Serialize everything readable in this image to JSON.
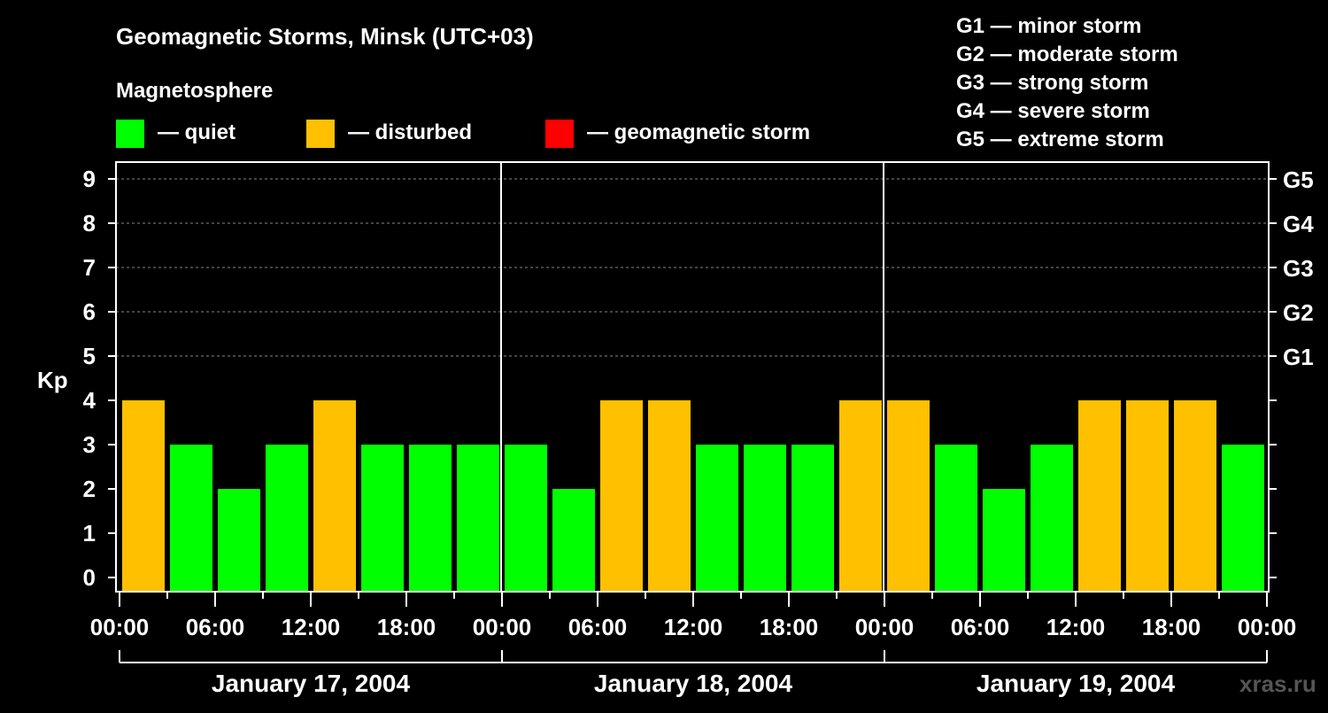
{
  "chart_data": {
    "type": "bar",
    "title": "Geomagnetic Storms, Minsk (UTC+03)",
    "subtitle": "Magnetosphere",
    "ylabel": "Kp",
    "ylim": [
      0,
      9
    ],
    "yticks": [
      "0",
      "1",
      "2",
      "3",
      "4",
      "5",
      "6",
      "7",
      "8",
      "9"
    ],
    "right_ticks": [
      {
        "kp": 5,
        "label": "G1"
      },
      {
        "kp": 6,
        "label": "G2"
      },
      {
        "kp": 7,
        "label": "G3"
      },
      {
        "kp": 8,
        "label": "G4"
      },
      {
        "kp": 9,
        "label": "G5"
      }
    ],
    "grid": "dashed horizontal at Kp 5-9",
    "legend": [
      {
        "label": "— quiet",
        "color": "#00FF00"
      },
      {
        "label": "— disturbed",
        "color": "#FFC000"
      },
      {
        "label": "— geomagnetic storm",
        "color": "#FF0000"
      }
    ],
    "storm_scale": [
      "G1 — minor storm",
      "G2 — moderate storm",
      "G3 — strong storm",
      "G4 — severe storm",
      "G5 — extreme storm"
    ],
    "xticks": [
      "00:00",
      "06:00",
      "12:00",
      "18:00",
      "00:00",
      "06:00",
      "12:00",
      "18:00",
      "00:00",
      "06:00",
      "12:00",
      "18:00",
      "00:00"
    ],
    "days": [
      {
        "label": "January 17, 2004",
        "values": [
          4,
          3,
          2,
          3,
          4,
          3,
          3,
          3
        ]
      },
      {
        "label": "January 18, 2004",
        "values": [
          3,
          2,
          4,
          4,
          3,
          3,
          3,
          4
        ]
      },
      {
        "label": "January 19, 2004",
        "values": [
          4,
          3,
          2,
          3,
          4,
          4,
          4,
          3
        ]
      }
    ],
    "thresholds": {
      "disturbed_min": 4,
      "storm_min": 5
    }
  },
  "watermark": "xras.ru"
}
